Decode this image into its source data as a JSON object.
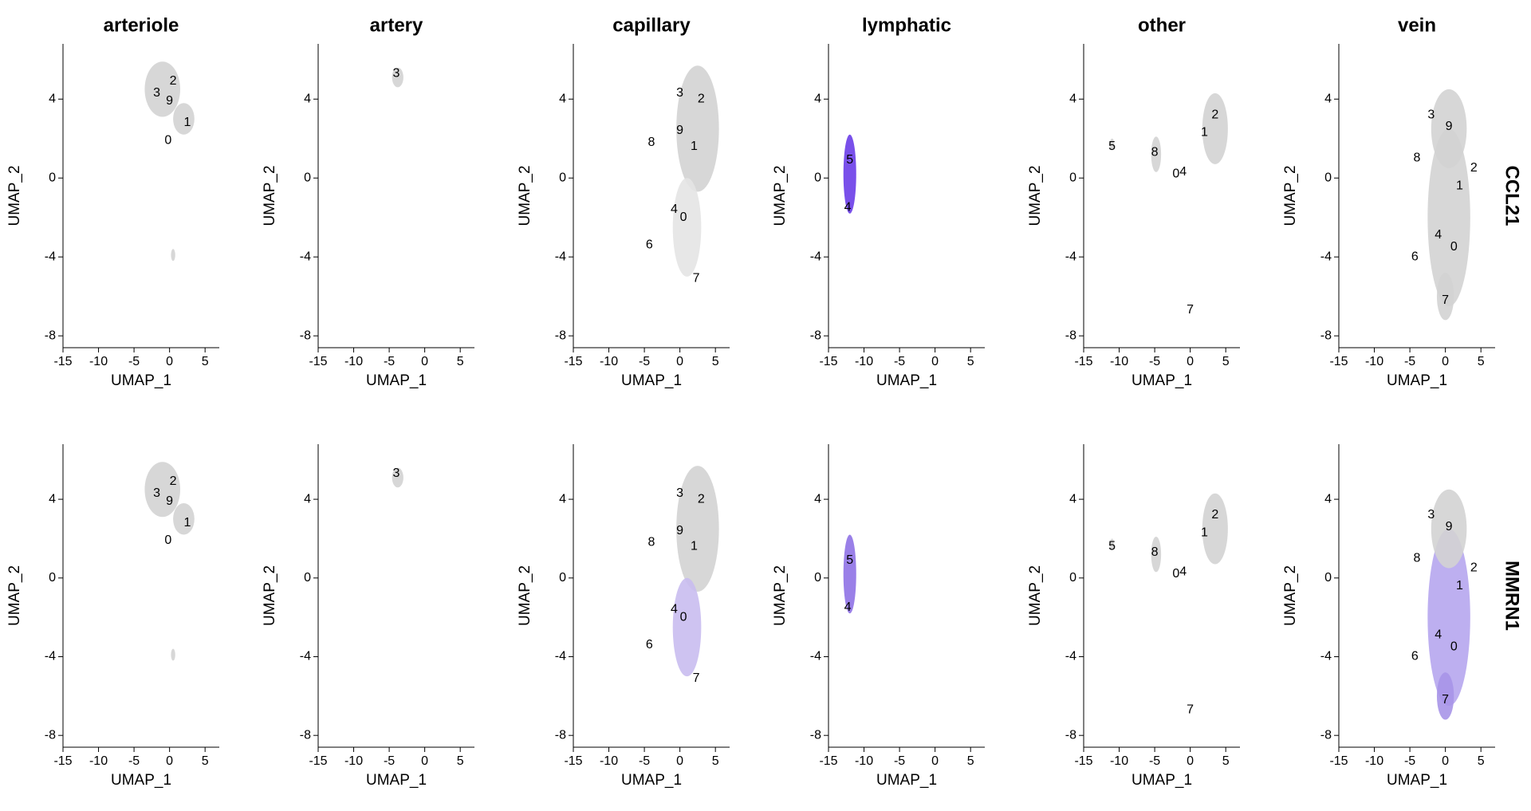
{
  "chart_data": [
    {
      "type": "scatter",
      "title": "arteriole",
      "x_label": "UMAP_1",
      "y_label": "UMAP_2",
      "xlim": [
        -15,
        7
      ],
      "ylim": [
        -8.6,
        6.8
      ],
      "xticks": [
        -15,
        -10,
        -5,
        0,
        5
      ],
      "yticks": [
        -8,
        -4,
        0,
        4
      ],
      "clouds": {
        "x": [
          -1,
          2,
          0.5
        ],
        "y": [
          4.5,
          3,
          -3.9
        ],
        "rx": [
          2.5,
          1.5,
          0.3
        ],
        "ry": [
          1.4,
          0.8,
          0.3
        ],
        "colors": [
          "#d3d3d3",
          "#d3d3d3",
          "#d3d3d3"
        ]
      },
      "cluster_labels": {
        "labels": [
          "3",
          "2",
          "9",
          "1",
          "0"
        ],
        "x": [
          -1.8,
          0.5,
          0,
          2.5,
          -0.2
        ],
        "y": [
          4.3,
          4.9,
          3.9,
          2.8,
          1.9
        ]
      }
    },
    {
      "type": "scatter",
      "title": "artery",
      "x_label": "UMAP_1",
      "y_label": "UMAP_2",
      "xlim": [
        -15,
        7
      ],
      "ylim": [
        -8.6,
        6.8
      ],
      "xticks": [
        -15,
        -10,
        -5,
        0,
        5
      ],
      "yticks": [
        -8,
        -4,
        0,
        4
      ],
      "clouds": {
        "x": [
          -3.8
        ],
        "y": [
          5.1
        ],
        "rx": [
          0.8
        ],
        "ry": [
          0.5
        ],
        "colors": [
          "#d3d3d3"
        ]
      },
      "cluster_labels": {
        "labels": [
          "3"
        ],
        "x": [
          -4
        ],
        "y": [
          5.3
        ]
      }
    },
    {
      "type": "scatter",
      "title": "capillary",
      "x_label": "UMAP_1",
      "y_label": "UMAP_2",
      "xlim": [
        -15,
        7
      ],
      "ylim": [
        -8.6,
        6.8
      ],
      "xticks": [
        -15,
        -10,
        -5,
        0,
        5
      ],
      "yticks": [
        -8,
        -4,
        0,
        4
      ],
      "clouds": {
        "x": [
          2.5,
          1
        ],
        "y": [
          2.5,
          -2.5
        ],
        "rx": [
          3,
          2
        ],
        "ry": [
          3.2,
          2.5
        ],
        "colors": [
          "#d3d3d3",
          "#e4e4e4"
        ]
      },
      "cluster_labels": {
        "labels": [
          "3",
          "2",
          "9",
          "1",
          "8",
          "4",
          "0",
          "6",
          "7"
        ],
        "x": [
          0,
          3,
          0,
          2,
          -4,
          -0.8,
          0.5,
          -4.3,
          2.3
        ],
        "y": [
          4.3,
          4,
          2.4,
          1.6,
          1.8,
          -1.6,
          -2,
          -3.4,
          -5.1
        ]
      }
    },
    {
      "type": "scatter",
      "title": "lymphatic",
      "x_label": "UMAP_1",
      "y_label": "UMAP_2",
      "xlim": [
        -15,
        7
      ],
      "ylim": [
        -8.6,
        6.8
      ],
      "xticks": [
        -15,
        -10,
        -5,
        0,
        5
      ],
      "yticks": [
        -8,
        -4,
        0,
        4
      ],
      "clouds": {
        "x": [
          -12
        ],
        "y": [
          0.2
        ],
        "rx": [
          0.9
        ],
        "ry": [
          2
        ],
        "colors": [
          "#6a3de8"
        ]
      },
      "cluster_labels": {
        "labels": [
          "5",
          "4"
        ],
        "x": [
          -12,
          -12.3
        ],
        "y": [
          0.9,
          -1.5
        ]
      }
    },
    {
      "type": "scatter",
      "title": "other",
      "x_label": "UMAP_1",
      "y_label": "UMAP_2",
      "xlim": [
        -15,
        7
      ],
      "ylim": [
        -8.6,
        6.8
      ],
      "xticks": [
        -15,
        -10,
        -5,
        0,
        5
      ],
      "yticks": [
        -8,
        -4,
        0,
        4
      ],
      "clouds": {
        "x": [
          -4.8,
          3.5,
          -11
        ],
        "y": [
          1.2,
          2.5,
          1.7
        ],
        "rx": [
          0.7,
          1.8,
          0.3
        ],
        "ry": [
          0.9,
          1.8,
          0.3
        ],
        "colors": [
          "#d3d3d3",
          "#d3d3d3",
          "#d3d3d3"
        ]
      },
      "cluster_labels": {
        "labels": [
          "5",
          "8",
          "0",
          "4",
          "1",
          "2",
          "7"
        ],
        "x": [
          -11,
          -5,
          -2,
          -1,
          2,
          3.5,
          0
        ],
        "y": [
          1.6,
          1.3,
          0.2,
          0.3,
          2.3,
          3.2,
          -6.7
        ]
      }
    },
    {
      "type": "scatter",
      "title": "vein",
      "row_label": "CCL21",
      "x_label": "UMAP_1",
      "y_label": "UMAP_2",
      "xlim": [
        -15,
        7
      ],
      "ylim": [
        -8.6,
        6.8
      ],
      "xticks": [
        -15,
        -10,
        -5,
        0,
        5
      ],
      "yticks": [
        -8,
        -4,
        0,
        4
      ],
      "clouds": {
        "x": [
          0.5,
          0.5,
          0
        ],
        "y": [
          -2,
          2.5,
          -6
        ],
        "rx": [
          3,
          2.5,
          1.2
        ],
        "ry": [
          4.5,
          2,
          1.2
        ],
        "colors": [
          "#d3d3d3",
          "#d3d3d3",
          "#d3d3d3"
        ]
      },
      "cluster_labels": {
        "labels": [
          "3",
          "9",
          "8",
          "2",
          "1",
          "4",
          "0",
          "6",
          "7"
        ],
        "x": [
          -2,
          0.5,
          -4,
          4,
          2,
          -1,
          1.2,
          -4.3,
          0
        ],
        "y": [
          3.2,
          2.6,
          1,
          0.5,
          -0.4,
          -2.9,
          -3.5,
          -4,
          -6.2
        ]
      }
    },
    {
      "type": "scatter",
      "x_label": "UMAP_1",
      "y_label": "UMAP_2",
      "xlim": [
        -15,
        7
      ],
      "ylim": [
        -8.6,
        6.8
      ],
      "xticks": [
        -15,
        -10,
        -5,
        0,
        5
      ],
      "yticks": [
        -8,
        -4,
        0,
        4
      ],
      "clouds": {
        "x": [
          -1,
          2,
          0.5
        ],
        "y": [
          4.5,
          3,
          -3.9
        ],
        "rx": [
          2.5,
          1.5,
          0.3
        ],
        "ry": [
          1.4,
          0.8,
          0.3
        ],
        "colors": [
          "#d3d3d3",
          "#d3d3d3",
          "#d3d3d3"
        ]
      },
      "cluster_labels": {
        "labels": [
          "3",
          "2",
          "9",
          "1",
          "0"
        ],
        "x": [
          -1.8,
          0.5,
          0,
          2.5,
          -0.2
        ],
        "y": [
          4.3,
          4.9,
          3.9,
          2.8,
          1.9
        ]
      }
    },
    {
      "type": "scatter",
      "x_label": "UMAP_1",
      "y_label": "UMAP_2",
      "xlim": [
        -15,
        7
      ],
      "ylim": [
        -8.6,
        6.8
      ],
      "xticks": [
        -15,
        -10,
        -5,
        0,
        5
      ],
      "yticks": [
        -8,
        -4,
        0,
        4
      ],
      "clouds": {
        "x": [
          -3.8
        ],
        "y": [
          5.1
        ],
        "rx": [
          0.8
        ],
        "ry": [
          0.5
        ],
        "colors": [
          "#d3d3d3"
        ]
      },
      "cluster_labels": {
        "labels": [
          "3"
        ],
        "x": [
          -4
        ],
        "y": [
          5.3
        ]
      }
    },
    {
      "type": "scatter",
      "x_label": "UMAP_1",
      "y_label": "UMAP_2",
      "xlim": [
        -15,
        7
      ],
      "ylim": [
        -8.6,
        6.8
      ],
      "xticks": [
        -15,
        -10,
        -5,
        0,
        5
      ],
      "yticks": [
        -8,
        -4,
        0,
        4
      ],
      "clouds": {
        "x": [
          2.5,
          1
        ],
        "y": [
          2.5,
          -2.5
        ],
        "rx": [
          3,
          2
        ],
        "ry": [
          3.2,
          2.5
        ],
        "colors": [
          "#d3d3d3",
          "#c9bdf0"
        ]
      },
      "cluster_labels": {
        "labels": [
          "3",
          "2",
          "9",
          "1",
          "8",
          "4",
          "0",
          "6",
          "7"
        ],
        "x": [
          0,
          3,
          0,
          2,
          -4,
          -0.8,
          0.5,
          -4.3,
          2.3
        ],
        "y": [
          4.3,
          4,
          2.4,
          1.6,
          1.8,
          -1.6,
          -2,
          -3.4,
          -5.1
        ]
      }
    },
    {
      "type": "scatter",
      "x_label": "UMAP_1",
      "y_label": "UMAP_2",
      "xlim": [
        -15,
        7
      ],
      "ylim": [
        -8.6,
        6.8
      ],
      "xticks": [
        -15,
        -10,
        -5,
        0,
        5
      ],
      "yticks": [
        -8,
        -4,
        0,
        4
      ],
      "clouds": {
        "x": [
          -12
        ],
        "y": [
          0.2
        ],
        "rx": [
          0.9
        ],
        "ry": [
          2
        ],
        "colors": [
          "#8f72e6"
        ]
      },
      "cluster_labels": {
        "labels": [
          "5",
          "4"
        ],
        "x": [
          -12,
          -12.3
        ],
        "y": [
          0.9,
          -1.5
        ]
      }
    },
    {
      "type": "scatter",
      "x_label": "UMAP_1",
      "y_label": "UMAP_2",
      "xlim": [
        -15,
        7
      ],
      "ylim": [
        -8.6,
        6.8
      ],
      "xticks": [
        -15,
        -10,
        -5,
        0,
        5
      ],
      "yticks": [
        -8,
        -4,
        0,
        4
      ],
      "clouds": {
        "x": [
          -4.8,
          3.5,
          -11
        ],
        "y": [
          1.2,
          2.5,
          1.7
        ],
        "rx": [
          0.7,
          1.8,
          0.3
        ],
        "ry": [
          0.9,
          1.8,
          0.3
        ],
        "colors": [
          "#d3d3d3",
          "#d3d3d3",
          "#d3d3d3"
        ]
      },
      "cluster_labels": {
        "labels": [
          "5",
          "8",
          "0",
          "4",
          "1",
          "2",
          "7"
        ],
        "x": [
          -11,
          -5,
          -2,
          -1,
          2,
          3.5,
          0
        ],
        "y": [
          1.6,
          1.3,
          0.2,
          0.3,
          2.3,
          3.2,
          -6.7
        ]
      }
    },
    {
      "type": "scatter",
      "row_label": "MMRN1",
      "x_label": "UMAP_1",
      "y_label": "UMAP_2",
      "xlim": [
        -15,
        7
      ],
      "ylim": [
        -8.6,
        6.8
      ],
      "xticks": [
        -15,
        -10,
        -5,
        0,
        5
      ],
      "yticks": [
        -8,
        -4,
        0,
        4
      ],
      "clouds": {
        "x": [
          0.5,
          0.5,
          0
        ],
        "y": [
          -2,
          2.5,
          -6
        ],
        "rx": [
          3,
          2.5,
          1.2
        ],
        "ry": [
          4.5,
          2,
          1.2
        ],
        "colors": [
          "#b6a6ee",
          "#d3d3d3",
          "#a795e8"
        ]
      },
      "cluster_labels": {
        "labels": [
          "3",
          "9",
          "8",
          "2",
          "1",
          "4",
          "0",
          "6",
          "7"
        ],
        "x": [
          -2,
          0.5,
          -4,
          4,
          2,
          -1,
          1.2,
          -4.3,
          0
        ],
        "y": [
          3.2,
          2.6,
          1,
          0.5,
          -0.4,
          -2.9,
          -3.5,
          -4,
          -6.2
        ]
      }
    }
  ]
}
